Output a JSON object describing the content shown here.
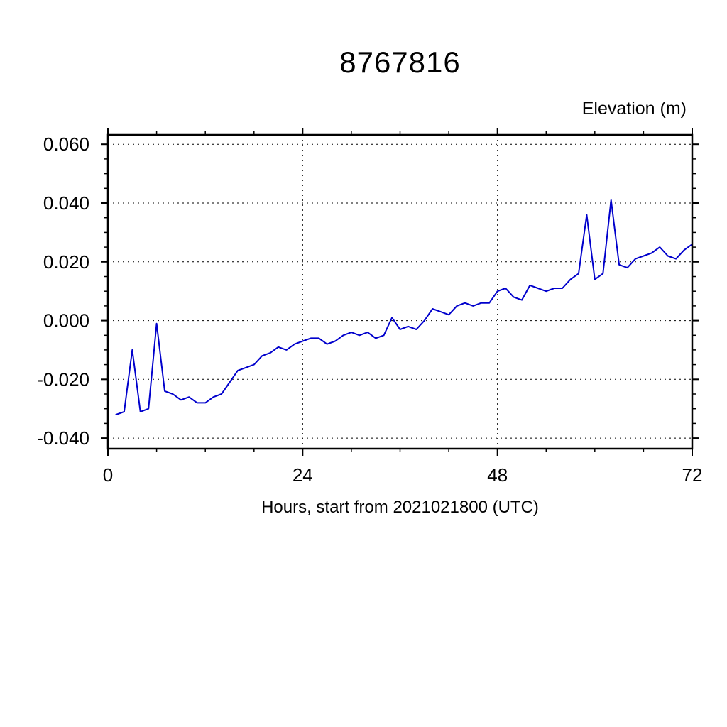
{
  "chart_data": {
    "type": "line",
    "title": "8767816",
    "ylabel": "Elevation (m)",
    "xlabel": "Hours, start from 2021021800 (UTC)",
    "line_color": "#0000cc",
    "frame_color": "#000000",
    "grid": true,
    "legend": "none",
    "xlim": [
      0,
      72
    ],
    "ylim": [
      -0.0436,
      0.0632
    ],
    "x_ticks": [
      0,
      24,
      48,
      72
    ],
    "x_tick_labels": [
      "0",
      "24",
      "48",
      "72"
    ],
    "x_minor_step": 6,
    "y_ticks": [
      -0.04,
      -0.02,
      0.0,
      0.02,
      0.04,
      0.06
    ],
    "y_tick_labels": [
      "-0.040",
      "-0.020",
      "0.000",
      "0.020",
      "0.040",
      "0.060"
    ],
    "y_minor_step": 0.005,
    "x": [
      1,
      2,
      3,
      4,
      5,
      6,
      7,
      8,
      9,
      10,
      11,
      12,
      13,
      14,
      15,
      16,
      17,
      18,
      19,
      20,
      21,
      22,
      23,
      24,
      25,
      26,
      27,
      28,
      29,
      30,
      31,
      32,
      33,
      34,
      35,
      36,
      37,
      38,
      39,
      40,
      41,
      42,
      43,
      44,
      45,
      46,
      47,
      48,
      49,
      50,
      51,
      52,
      53,
      54,
      55,
      56,
      57,
      58,
      59,
      60,
      61,
      62,
      63,
      64,
      65,
      66,
      67,
      68,
      69,
      70,
      71,
      72
    ],
    "y": [
      -0.032,
      -0.031,
      -0.01,
      -0.031,
      -0.03,
      -0.001,
      -0.024,
      -0.025,
      -0.027,
      -0.026,
      -0.028,
      -0.028,
      -0.026,
      -0.025,
      -0.021,
      -0.017,
      -0.016,
      -0.015,
      -0.012,
      -0.011,
      -0.009,
      -0.01,
      -0.008,
      -0.007,
      -0.006,
      -0.006,
      -0.008,
      -0.007,
      -0.005,
      -0.004,
      -0.005,
      -0.004,
      -0.006,
      -0.005,
      0.001,
      -0.003,
      -0.002,
      -0.003,
      0.0,
      0.004,
      0.003,
      0.002,
      0.005,
      0.006,
      0.005,
      0.006,
      0.006,
      0.01,
      0.011,
      0.008,
      0.007,
      0.012,
      0.011,
      0.01,
      0.011,
      0.011,
      0.014,
      0.016,
      0.036,
      0.014,
      0.016,
      0.041,
      0.019,
      0.018,
      0.021,
      0.022,
      0.023,
      0.025,
      0.022,
      0.021,
      0.024,
      0.026
    ]
  }
}
